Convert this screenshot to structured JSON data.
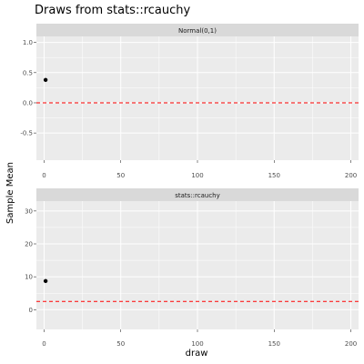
{
  "chart_data": {
    "type": "scatter",
    "title": "Draws from stats::rcauchy",
    "xlabel": "draw",
    "ylabel": "Sample Mean",
    "x_ticks": [
      0,
      50,
      100,
      150,
      200
    ],
    "xlim": [
      -5,
      205
    ],
    "panels": [
      {
        "strip": "Normal(0,1)",
        "ylim": [
          -0.95,
          1.1
        ],
        "y_ticks": [
          -0.5,
          0.0,
          0.5,
          1.0
        ],
        "y_tick_labels": [
          "-0.5",
          "0.0",
          "0.5",
          "1.0"
        ],
        "reference_line": 0.0,
        "points": [
          {
            "x": 1,
            "y": 0.38
          }
        ]
      },
      {
        "strip": "stats::rcauchy",
        "ylim": [
          -6,
          33
        ],
        "y_ticks": [
          0,
          10,
          20,
          30
        ],
        "y_tick_labels": [
          "0",
          "10",
          "20",
          "30"
        ],
        "reference_line": 2.5,
        "points": [
          {
            "x": 1,
            "y": 8.7
          }
        ]
      }
    ],
    "colors": {
      "panel_background": "#ebebeb",
      "strip_background": "#d9d9d9",
      "grid": "#ffffff",
      "point": "#000000",
      "reference_line": "#ff0000"
    },
    "grid": true
  }
}
